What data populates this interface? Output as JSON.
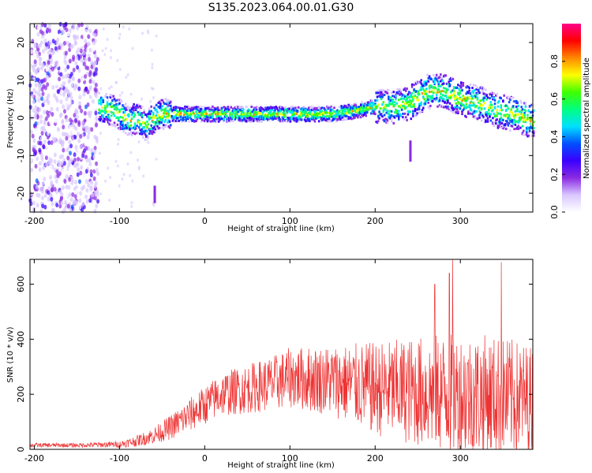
{
  "title": "S135.2023.064.00.01.G30",
  "chart_data": [
    {
      "type": "heatmap",
      "xlabel": "Height of straight line (km)",
      "ylabel": "Frequency (Hz)",
      "xlim": [
        -205,
        385
      ],
      "ylim": [
        -25,
        25
      ],
      "xticks": [
        -200,
        -100,
        0,
        100,
        200,
        300
      ],
      "yticks": [
        -20,
        -10,
        0,
        10,
        20
      ],
      "colorbar": {
        "label": "Normalized spectral amplitude",
        "range": [
          0,
          1
        ],
        "ticks": [
          0.0,
          0.2,
          0.4,
          0.6,
          0.8
        ],
        "colors": [
          "#ffffff",
          "#d9c7ff",
          "#8a2be2",
          "#3a00ff",
          "#0050ff",
          "#00e0ff",
          "#00ff80",
          "#40ff00",
          "#ffff00",
          "#ff8800",
          "#ff0000",
          "#ff0088"
        ]
      },
      "ridge": {
        "x": [
          -125,
          -110,
          -100,
          -90,
          -80,
          -70,
          -60,
          -50,
          -40,
          -20,
          0,
          50,
          100,
          150,
          180,
          200,
          220,
          240,
          260,
          280,
          300,
          320,
          340,
          360,
          385
        ],
        "y": [
          3,
          2,
          1,
          -1,
          0,
          -2,
          0,
          1,
          1,
          1,
          1,
          1,
          1,
          1,
          2,
          3,
          3,
          4,
          7,
          7,
          5,
          4,
          2,
          1,
          -1
        ]
      }
    },
    {
      "type": "line",
      "xlabel": "Height of straight line (km)",
      "ylabel": "SNR (10 * v/v)",
      "xlim": [
        -205,
        385
      ],
      "ylim": [
        0,
        690
      ],
      "xticks": [
        -200,
        -100,
        0,
        100,
        200,
        300
      ],
      "yticks": [
        0,
        200,
        400,
        600
      ],
      "series": [
        {
          "color": "#ee3333",
          "envelope": {
            "x": [
              -205,
              -150,
              -100,
              -80,
              -60,
              -40,
              -20,
              0,
              20,
              50,
              80,
              100,
              150,
              200,
              250,
              300,
              350,
              385
            ],
            "mean": [
              15,
              15,
              18,
              30,
              50,
              80,
              120,
              160,
              200,
              220,
              240,
              260,
              250,
              220,
              210,
              200,
              190,
              180
            ],
            "spread": [
              8,
              8,
              12,
              20,
              30,
              45,
              60,
              70,
              80,
              90,
              100,
              110,
              130,
              170,
              200,
              230,
              220,
              200
            ]
          },
          "peaks": [
            {
              "x": 291,
              "y": 690
            },
            {
              "x": 348,
              "y": 680
            },
            {
              "x": 287,
              "y": 640
            },
            {
              "x": 270,
              "y": 600
            }
          ]
        }
      ]
    }
  ]
}
